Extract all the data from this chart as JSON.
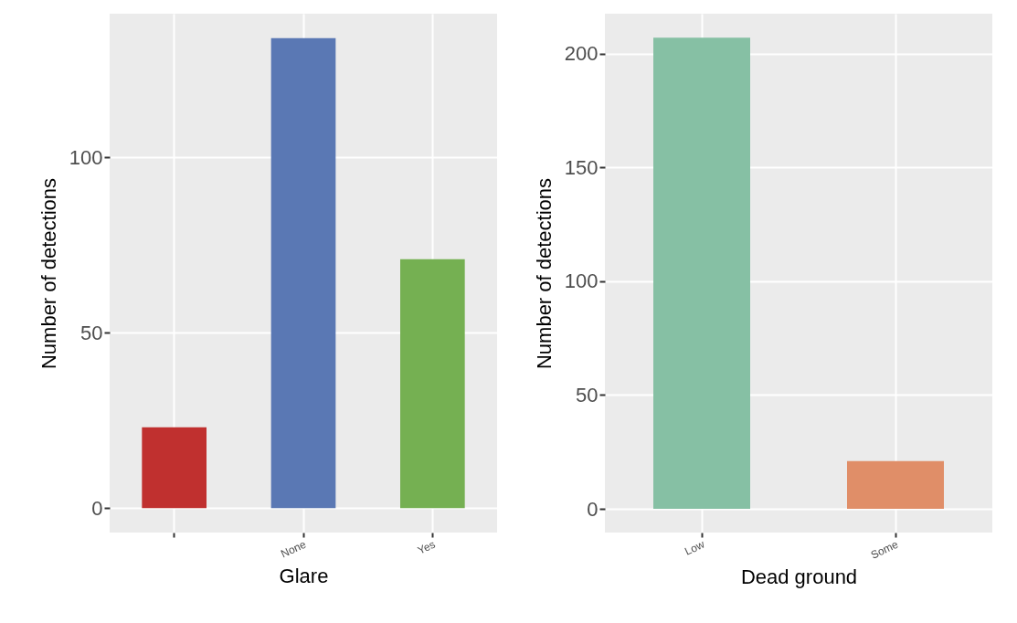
{
  "chart_data": [
    {
      "type": "bar",
      "xlabel": "Glare",
      "ylabel": "Number of detections",
      "categories": [
        null,
        "None",
        "Yes"
      ],
      "values": [
        23,
        134,
        71
      ],
      "colors": [
        "#c0302f",
        "#5a78b4",
        "#75b052"
      ],
      "ylim": [
        -7,
        141
      ],
      "yticks": [
        0,
        50,
        100
      ],
      "grid": true
    },
    {
      "type": "bar",
      "xlabel": "Dead ground",
      "ylabel": "Number of detections",
      "categories": [
        "Low",
        "Some"
      ],
      "values": [
        207,
        21
      ],
      "colors": [
        "#86c0a4",
        "#e08e68"
      ],
      "ylim": [
        -10.4,
        217.5
      ],
      "yticks": [
        0,
        50,
        100,
        150,
        200
      ],
      "grid": true
    }
  ]
}
